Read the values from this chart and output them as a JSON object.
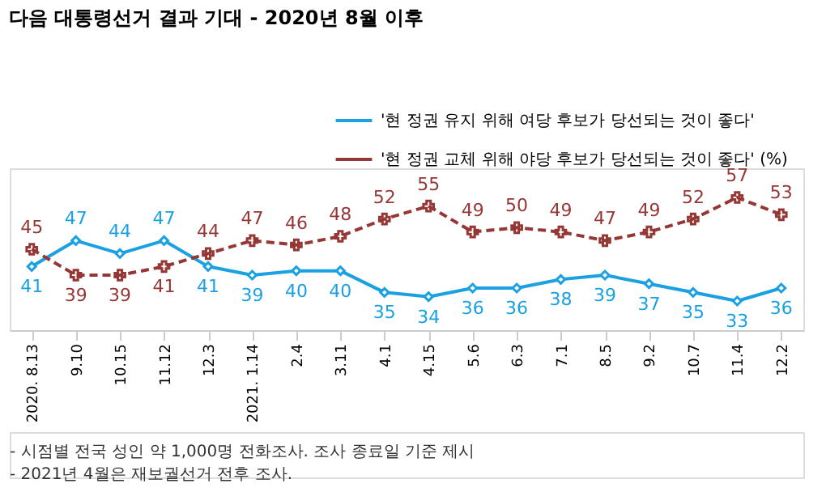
{
  "chart_data": {
    "type": "line",
    "title": "다음 대통령선거 결과 기대 - 2020년 8월 이후",
    "categories": [
      "2020. 8.13",
      "9.10",
      "10.15",
      "11.12",
      "12.3",
      "2021. 1.14",
      "2.4",
      "3.11",
      "4.1",
      "4.15",
      "5.6",
      "6.3",
      "7.1",
      "8.5",
      "9.2",
      "10.7",
      "11.4",
      "12.2"
    ],
    "series": [
      {
        "name": "'현 정권 유지 위해 여당 후보가 당선되는 것이 좋다'",
        "color": "#1ba1e2",
        "marker": "diamond",
        "line_style": "solid",
        "values": [
          41,
          47,
          44,
          47,
          41,
          39,
          40,
          40,
          35,
          34,
          36,
          36,
          38,
          39,
          37,
          35,
          33,
          36
        ]
      },
      {
        "name": "'현 정권 교체 위해 야당 후보가 당선되는 것이 좋다' (%)",
        "color": "#953735",
        "marker": "cross",
        "line_style": "dashed",
        "values": [
          45,
          39,
          39,
          41,
          44,
          47,
          46,
          48,
          52,
          55,
          49,
          50,
          49,
          47,
          49,
          52,
          57,
          53
        ]
      }
    ],
    "data_labels": true,
    "grid": false,
    "legend": "top right",
    "annotations": [
      "- 시점별 전국 성인 약 1,000명 전화조사. 조사 종료일 기준 제시",
      "- 2021년 4월은 재보궐선거 전후 조사."
    ]
  }
}
